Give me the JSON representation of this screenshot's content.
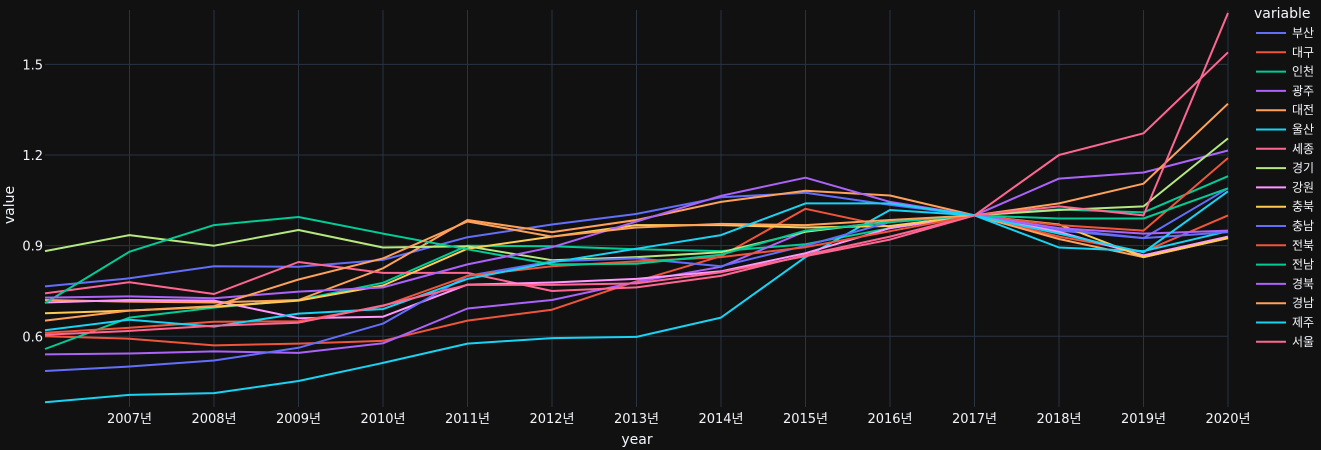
{
  "chart_data": {
    "type": "line",
    "xlabel": "year",
    "ylabel": "value",
    "legend_title": "variable",
    "legend_position": "right",
    "grid": true,
    "x": [
      2006,
      2007,
      2008,
      2009,
      2010,
      2011,
      2012,
      2013,
      2014,
      2015,
      2016,
      2017,
      2018,
      2019,
      2020
    ],
    "x_tick_labels": [
      "2007년",
      "2008년",
      "2009년",
      "2010년",
      "2011년",
      "2012년",
      "2013년",
      "2014년",
      "2015년",
      "2016년",
      "2017년",
      "2018년",
      "2019년",
      "2020년"
    ],
    "x_tick_values": [
      2007,
      2008,
      2009,
      2010,
      2011,
      2012,
      2013,
      2014,
      2015,
      2016,
      2017,
      2018,
      2019,
      2020
    ],
    "xlim": [
      2006,
      2020
    ],
    "y_ticks": [
      0.6,
      0.9,
      1.2,
      1.5
    ],
    "y_tick_labels": [
      "0.6",
      "0.9",
      "1.2",
      "1.5"
    ],
    "ylim": [
      0.366,
      1.68
    ],
    "series": [
      {
        "name": "부산",
        "color": "#636efa",
        "values": [
          0.765,
          0.792,
          0.832,
          0.83,
          0.853,
          0.928,
          0.97,
          1.005,
          1.06,
          1.075,
          1.035,
          1.0,
          0.95,
          0.925,
          1.09
        ]
      },
      {
        "name": "대구",
        "color": "#EF553B",
        "values": [
          0.6,
          0.592,
          0.57,
          0.576,
          0.585,
          0.652,
          0.688,
          0.782,
          0.865,
          1.022,
          0.962,
          1.0,
          0.93,
          0.88,
          1.0
        ]
      },
      {
        "name": "인천",
        "color": "#00cc96",
        "values": [
          0.558,
          0.662,
          0.695,
          0.72,
          0.777,
          0.9,
          0.898,
          0.888,
          0.882,
          0.905,
          0.958,
          1.0,
          1.02,
          1.01,
          1.13
        ]
      },
      {
        "name": "광주",
        "color": "#ab63fa",
        "values": [
          0.54,
          0.543,
          0.55,
          0.545,
          0.577,
          0.692,
          0.72,
          0.78,
          0.83,
          0.948,
          0.98,
          1.0,
          1.122,
          1.142,
          1.215
        ]
      },
      {
        "name": "대전",
        "color": "#FFA15A",
        "values": [
          0.72,
          0.715,
          0.712,
          0.72,
          0.825,
          0.985,
          0.945,
          0.985,
          1.045,
          1.082,
          1.066,
          1.0,
          0.922,
          0.862,
          0.925
        ]
      },
      {
        "name": "울산",
        "color": "#19d3f3",
        "values": [
          0.382,
          0.406,
          0.412,
          0.452,
          0.512,
          0.576,
          0.594,
          0.598,
          0.662,
          0.862,
          1.018,
          1.0,
          0.894,
          0.882,
          0.948
        ]
      },
      {
        "name": "세종",
        "color": "#FF6692",
        "values": [
          0.742,
          0.779,
          0.74,
          0.846,
          0.81,
          0.81,
          0.75,
          0.762,
          0.8,
          0.869,
          0.93,
          1.0,
          1.2,
          1.272,
          1.54
        ]
      },
      {
        "name": "경기",
        "color": "#B6E880",
        "values": [
          0.882,
          0.935,
          0.9,
          0.952,
          0.894,
          0.898,
          0.852,
          0.862,
          0.878,
          0.946,
          0.98,
          1.0,
          1.018,
          1.03,
          1.255
        ]
      },
      {
        "name": "강원",
        "color": "#FF97FF",
        "values": [
          0.712,
          0.72,
          0.718,
          0.66,
          0.665,
          0.771,
          0.778,
          0.79,
          0.815,
          0.875,
          0.958,
          1.0,
          0.946,
          0.868,
          0.93
        ]
      },
      {
        "name": "충북",
        "color": "#FECB52",
        "values": [
          0.676,
          0.685,
          0.698,
          0.718,
          0.768,
          0.89,
          0.93,
          0.968,
          0.968,
          0.96,
          0.965,
          1.0,
          0.97,
          0.862,
          0.925
        ]
      },
      {
        "name": "충남",
        "color": "#636efa",
        "values": [
          0.485,
          0.5,
          0.52,
          0.562,
          0.642,
          0.8,
          0.848,
          0.858,
          0.832,
          0.9,
          0.978,
          1.0,
          0.955,
          0.925,
          0.945
        ]
      },
      {
        "name": "전북",
        "color": "#EF553B",
        "values": [
          0.612,
          0.628,
          0.648,
          0.65,
          0.7,
          0.8,
          0.832,
          0.848,
          0.862,
          0.895,
          0.948,
          1.0,
          0.968,
          0.95,
          1.19
        ]
      },
      {
        "name": "전남",
        "color": "#00cc96",
        "values": [
          0.71,
          0.88,
          0.968,
          0.995,
          0.94,
          0.888,
          0.838,
          0.84,
          0.87,
          0.95,
          0.978,
          1.0,
          0.99,
          0.99,
          1.09
        ]
      },
      {
        "name": "경북",
        "color": "#ab63fa",
        "values": [
          0.728,
          0.732,
          0.726,
          0.748,
          0.762,
          0.838,
          0.895,
          0.98,
          1.065,
          1.125,
          1.045,
          1.0,
          0.958,
          0.94,
          0.95
        ]
      },
      {
        "name": "경남",
        "color": "#FFA15A",
        "values": [
          0.652,
          0.685,
          0.7,
          0.788,
          0.858,
          0.98,
          0.93,
          0.96,
          0.972,
          0.968,
          0.985,
          1.0,
          1.04,
          1.105,
          1.37
        ]
      },
      {
        "name": "제주",
        "color": "#19d3f3",
        "values": [
          0.62,
          0.655,
          0.632,
          0.675,
          0.69,
          0.79,
          0.845,
          0.89,
          0.935,
          1.04,
          1.04,
          1.0,
          0.94,
          0.878,
          1.08
        ]
      },
      {
        "name": "서울",
        "color": "#FF6692",
        "values": [
          0.605,
          0.618,
          0.635,
          0.645,
          0.702,
          0.77,
          0.77,
          0.775,
          0.812,
          0.865,
          0.92,
          1.0,
          1.03,
          1.0,
          1.67
        ]
      }
    ]
  }
}
